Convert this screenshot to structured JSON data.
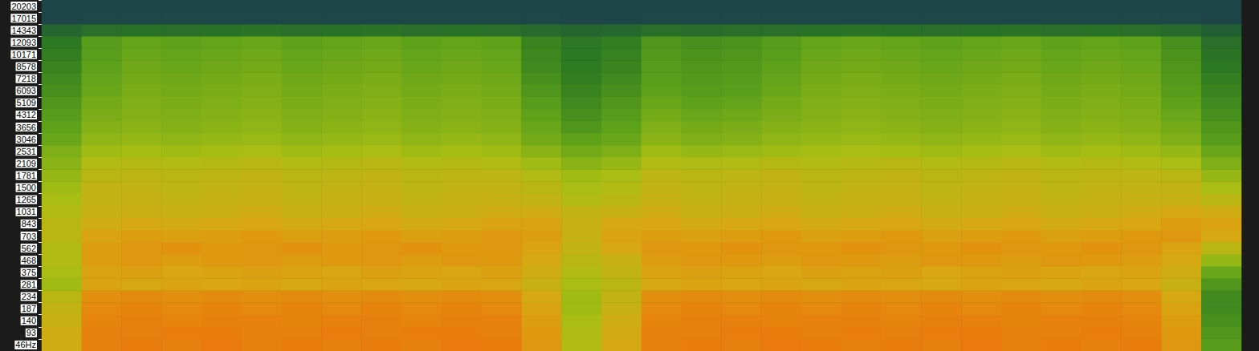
{
  "chart_data": {
    "type": "heatmap",
    "tick_labels": "y",
    "y": [
      {
        "value": 46,
        "label": "46Hz"
      },
      93,
      140,
      187,
      234,
      281,
      375,
      468,
      562,
      703,
      843,
      1031,
      1265,
      1500,
      1781,
      2109,
      2531,
      3046,
      3656,
      4312,
      5109,
      6093,
      7218,
      8578,
      10171,
      12093,
      14343,
      17015,
      20203
    ],
    "cells": [
      [
        72,
        86,
        87,
        86,
        88,
        86,
        87,
        86,
        87,
        86,
        88,
        87,
        80,
        64,
        74,
        86,
        87,
        86,
        88,
        87,
        86,
        87,
        86,
        88,
        86,
        87,
        86,
        87,
        80,
        46
      ],
      [
        72,
        86,
        86,
        87,
        87,
        86,
        86,
        87,
        86,
        87,
        87,
        86,
        79,
        63,
        73,
        86,
        86,
        87,
        87,
        86,
        87,
        86,
        87,
        87,
        86,
        86,
        87,
        86,
        79,
        44
      ],
      [
        70,
        85,
        86,
        85,
        86,
        86,
        85,
        86,
        86,
        85,
        86,
        86,
        78,
        62,
        72,
        85,
        86,
        86,
        85,
        86,
        86,
        85,
        86,
        86,
        85,
        86,
        86,
        85,
        78,
        42
      ],
      [
        68,
        84,
        85,
        84,
        85,
        84,
        85,
        84,
        85,
        84,
        85,
        84,
        76,
        60,
        70,
        84,
        85,
        84,
        85,
        84,
        85,
        84,
        85,
        84,
        85,
        84,
        85,
        84,
        76,
        40
      ],
      [
        66,
        82,
        83,
        82,
        83,
        82,
        83,
        82,
        83,
        82,
        83,
        82,
        74,
        60,
        68,
        82,
        83,
        82,
        83,
        82,
        83,
        82,
        83,
        82,
        83,
        82,
        83,
        82,
        74,
        40
      ],
      [
        60,
        76,
        74,
        76,
        75,
        76,
        74,
        76,
        75,
        74,
        76,
        75,
        70,
        62,
        66,
        74,
        76,
        75,
        76,
        74,
        76,
        75,
        74,
        76,
        75,
        74,
        76,
        75,
        70,
        44
      ],
      [
        62,
        76,
        77,
        75,
        76,
        77,
        76,
        75,
        77,
        76,
        75,
        77,
        72,
        64,
        68,
        76,
        77,
        76,
        75,
        77,
        76,
        77,
        75,
        76,
        77,
        76,
        75,
        76,
        72,
        50
      ],
      [
        64,
        78,
        80,
        78,
        79,
        80,
        78,
        79,
        80,
        78,
        80,
        79,
        74,
        66,
        70,
        78,
        80,
        79,
        78,
        80,
        79,
        78,
        80,
        79,
        78,
        80,
        79,
        78,
        74,
        58
      ],
      [
        64,
        78,
        80,
        81,
        79,
        80,
        81,
        79,
        80,
        81,
        79,
        80,
        76,
        68,
        74,
        80,
        79,
        81,
        80,
        79,
        81,
        80,
        79,
        81,
        80,
        79,
        81,
        80,
        76,
        66
      ],
      [
        66,
        76,
        78,
        77,
        78,
        79,
        77,
        78,
        79,
        77,
        78,
        80,
        78,
        70,
        76,
        78,
        77,
        78,
        79,
        77,
        78,
        79,
        77,
        78,
        79,
        77,
        78,
        79,
        80,
        74
      ],
      [
        66,
        72,
        74,
        73,
        74,
        75,
        73,
        74,
        75,
        73,
        74,
        76,
        76,
        70,
        74,
        75,
        73,
        74,
        75,
        73,
        74,
        75,
        73,
        74,
        75,
        73,
        74,
        75,
        78,
        76
      ],
      [
        64,
        70,
        71,
        70,
        71,
        72,
        70,
        71,
        72,
        70,
        71,
        72,
        72,
        68,
        70,
        72,
        70,
        71,
        72,
        70,
        71,
        72,
        70,
        71,
        72,
        70,
        71,
        72,
        74,
        72
      ],
      [
        62,
        68,
        69,
        68,
        69,
        70,
        68,
        69,
        70,
        68,
        69,
        70,
        68,
        64,
        66,
        70,
        68,
        69,
        70,
        68,
        69,
        70,
        68,
        69,
        70,
        68,
        69,
        70,
        70,
        66
      ],
      [
        60,
        68,
        68,
        67,
        68,
        69,
        67,
        68,
        69,
        67,
        68,
        68,
        66,
        62,
        64,
        68,
        67,
        68,
        69,
        67,
        68,
        69,
        67,
        68,
        69,
        67,
        68,
        68,
        68,
        62
      ],
      [
        58,
        66,
        67,
        66,
        67,
        68,
        66,
        67,
        68,
        66,
        67,
        67,
        64,
        60,
        62,
        67,
        66,
        67,
        68,
        66,
        67,
        68,
        66,
        67,
        68,
        66,
        67,
        67,
        66,
        58
      ],
      [
        56,
        64,
        65,
        64,
        65,
        66,
        64,
        65,
        66,
        64,
        65,
        64,
        60,
        56,
        58,
        64,
        63,
        64,
        65,
        64,
        65,
        66,
        64,
        65,
        66,
        64,
        65,
        64,
        62,
        54
      ],
      [
        54,
        60,
        61,
        60,
        61,
        62,
        60,
        61,
        62,
        60,
        61,
        60,
        56,
        52,
        54,
        60,
        58,
        59,
        60,
        61,
        62,
        61,
        60,
        61,
        62,
        60,
        61,
        60,
        58,
        50
      ],
      [
        50,
        57,
        58,
        57,
        58,
        59,
        57,
        58,
        59,
        57,
        58,
        57,
        52,
        48,
        50,
        56,
        54,
        55,
        57,
        58,
        59,
        58,
        57,
        58,
        59,
        57,
        58,
        57,
        54,
        46
      ],
      [
        48,
        55,
        56,
        55,
        56,
        57,
        55,
        56,
        57,
        55,
        56,
        55,
        50,
        44,
        48,
        54,
        52,
        53,
        55,
        56,
        57,
        56,
        55,
        56,
        57,
        55,
        56,
        55,
        52,
        44
      ],
      [
        46,
        53,
        55,
        54,
        55,
        56,
        54,
        55,
        56,
        54,
        55,
        54,
        48,
        42,
        46,
        52,
        50,
        51,
        53,
        55,
        56,
        55,
        54,
        55,
        56,
        54,
        55,
        54,
        50,
        42
      ],
      [
        44,
        52,
        54,
        53,
        54,
        55,
        53,
        54,
        55,
        53,
        54,
        53,
        46,
        40,
        44,
        50,
        48,
        49,
        52,
        54,
        55,
        54,
        53,
        54,
        55,
        53,
        54,
        53,
        48,
        40
      ],
      [
        42,
        50,
        53,
        52,
        53,
        54,
        52,
        53,
        54,
        52,
        53,
        52,
        44,
        38,
        42,
        48,
        46,
        47,
        50,
        53,
        54,
        53,
        52,
        53,
        54,
        52,
        53,
        52,
        46,
        38
      ],
      [
        40,
        49,
        52,
        51,
        52,
        53,
        51,
        52,
        53,
        51,
        52,
        51,
        42,
        36,
        40,
        47,
        45,
        46,
        49,
        52,
        53,
        52,
        51,
        52,
        53,
        51,
        52,
        51,
        45,
        36
      ],
      [
        38,
        48,
        51,
        50,
        51,
        52,
        50,
        51,
        52,
        50,
        51,
        50,
        40,
        35,
        38,
        46,
        44,
        45,
        48,
        51,
        52,
        51,
        50,
        51,
        52,
        50,
        51,
        50,
        44,
        34
      ],
      [
        36,
        47,
        50,
        49,
        50,
        51,
        49,
        50,
        51,
        49,
        50,
        49,
        39,
        34,
        37,
        45,
        43,
        44,
        47,
        50,
        51,
        50,
        49,
        50,
        51,
        49,
        50,
        49,
        43,
        32
      ],
      [
        34,
        46,
        49,
        48,
        49,
        50,
        48,
        49,
        50,
        48,
        49,
        48,
        38,
        33,
        36,
        44,
        42,
        43,
        46,
        49,
        50,
        49,
        48,
        49,
        50,
        48,
        49,
        48,
        42,
        30
      ],
      [
        26,
        30,
        31,
        30,
        31,
        32,
        30,
        31,
        32,
        30,
        31,
        30,
        28,
        26,
        27,
        30,
        29,
        30,
        30,
        31,
        32,
        31,
        30,
        31,
        32,
        30,
        31,
        30,
        28,
        24
      ],
      [
        8,
        9,
        9,
        9,
        9,
        9,
        9,
        9,
        9,
        9,
        9,
        9,
        9,
        8,
        8,
        9,
        9,
        9,
        9,
        9,
        9,
        9,
        9,
        9,
        9,
        9,
        9,
        9,
        9,
        8
      ],
      [
        8,
        8,
        8,
        8,
        8,
        8,
        8,
        8,
        8,
        8,
        8,
        8,
        8,
        8,
        8,
        8,
        8,
        8,
        8,
        8,
        8,
        8,
        8,
        8,
        8,
        8,
        8,
        8,
        8,
        8
      ]
    ]
  }
}
